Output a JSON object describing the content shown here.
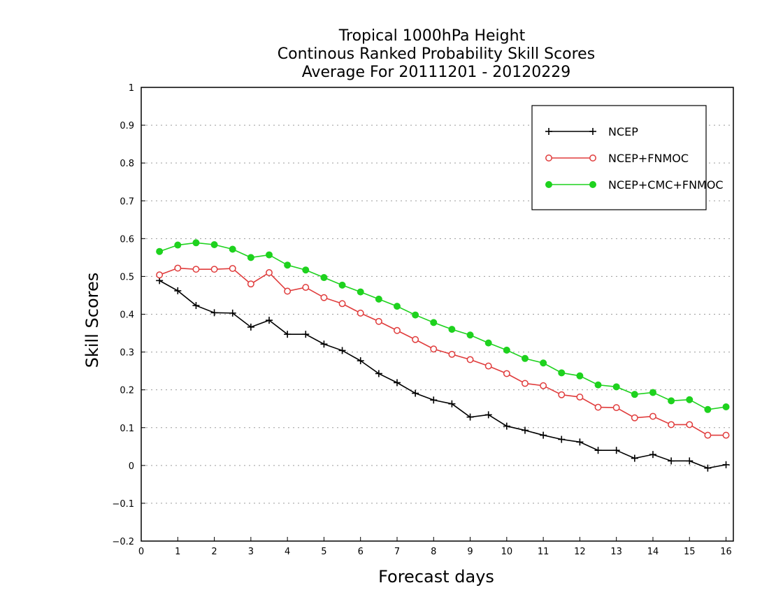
{
  "chart_data": {
    "type": "line",
    "title": [
      "Tropical 1000hPa Height",
      "Continous Ranked Probability Skill Scores",
      "Average For 20111201 - 20120229"
    ],
    "xlabel": "Forecast days",
    "ylabel": "Skill Scores",
    "xlim": [
      0,
      16.2
    ],
    "ylim": [
      -0.2,
      1.0
    ],
    "xticks": [
      0,
      1,
      2,
      3,
      4,
      5,
      6,
      7,
      8,
      9,
      10,
      11,
      12,
      13,
      14,
      15,
      16
    ],
    "yticks": [
      -0.2,
      -0.1,
      0,
      0.1,
      0.2,
      0.3,
      0.4,
      0.5,
      0.6,
      0.7,
      0.8,
      0.9,
      1
    ],
    "grid": "horizontal dotted",
    "legend_position": "top-right",
    "x": [
      0.5,
      1.0,
      1.5,
      2.0,
      2.5,
      3.0,
      3.5,
      4.0,
      4.5,
      5.0,
      5.5,
      6.0,
      6.5,
      7.0,
      7.5,
      8.0,
      8.5,
      9.0,
      9.5,
      10.0,
      10.5,
      11.0,
      11.5,
      12.0,
      12.5,
      13.0,
      13.5,
      14.0,
      14.5,
      15.0,
      15.5,
      16.0
    ],
    "series": [
      {
        "name": "NCEP",
        "color": "#000000",
        "marker": "plus",
        "values": [
          0.489,
          0.462,
          0.423,
          0.404,
          0.403,
          0.366,
          0.384,
          0.347,
          0.347,
          0.321,
          0.304,
          0.277,
          0.243,
          0.219,
          0.191,
          0.173,
          0.163,
          0.128,
          0.134,
          0.104,
          0.093,
          0.08,
          0.069,
          0.062,
          0.04,
          0.04,
          0.019,
          0.029,
          0.012,
          0.012,
          -0.007,
          0.002
        ]
      },
      {
        "name": "NCEP+FNMOC",
        "color": "#e03c3c",
        "marker": "open-circle",
        "values": [
          0.504,
          0.522,
          0.519,
          0.519,
          0.521,
          0.48,
          0.51,
          0.461,
          0.471,
          0.444,
          0.428,
          0.403,
          0.381,
          0.357,
          0.333,
          0.308,
          0.294,
          0.28,
          0.263,
          0.243,
          0.217,
          0.211,
          0.187,
          0.181,
          0.154,
          0.153,
          0.126,
          0.13,
          0.108,
          0.108,
          0.08,
          0.08
        ]
      },
      {
        "name": "NCEP+CMC+FNMOC",
        "color": "#1ed21e",
        "marker": "filled-circle",
        "values": [
          0.566,
          0.583,
          0.589,
          0.584,
          0.572,
          0.55,
          0.557,
          0.53,
          0.517,
          0.497,
          0.477,
          0.459,
          0.44,
          0.421,
          0.398,
          0.378,
          0.36,
          0.345,
          0.324,
          0.305,
          0.283,
          0.271,
          0.245,
          0.237,
          0.213,
          0.208,
          0.188,
          0.193,
          0.171,
          0.174,
          0.148,
          0.155
        ]
      }
    ]
  }
}
